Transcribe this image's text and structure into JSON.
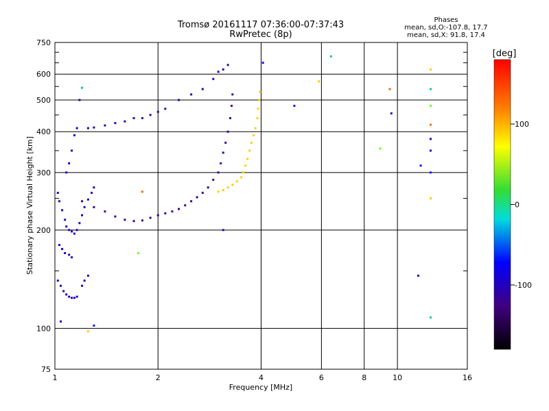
{
  "header": {
    "title_line1": "Tromsø 20161117 07:36:00-07:37:43",
    "title_line2": "RwPretec (8p)",
    "phases_title": "Phases",
    "phases_line1": "mean, sd,O:-107.8, 17.7",
    "phases_line2": "mean, sd,X:  91.8, 17.4"
  },
  "colorbar": {
    "unit": "[deg]",
    "tick_labels": [
      "100",
      "0",
      "-100"
    ],
    "tick_values": [
      100,
      0,
      -100
    ],
    "range": [
      -180,
      180
    ]
  },
  "chart_data": {
    "type": "scatter",
    "xlabel": "Frequency [MHz]",
    "ylabel": "Stationary phase Virtual Height [km]",
    "xscale": "log",
    "yscale": "log",
    "xlim": [
      1,
      16
    ],
    "ylim": [
      75,
      750
    ],
    "xticks": [
      1,
      2,
      4,
      6,
      8,
      10,
      16
    ],
    "xtick_labels": [
      "1",
      "2",
      "4",
      "6",
      "8",
      "10",
      "16"
    ],
    "yticks": [
      75,
      100,
      200,
      300,
      400,
      500,
      600,
      750
    ],
    "ytick_labels": [
      "75",
      "100",
      "200",
      "300",
      "400",
      "500",
      "600",
      "750"
    ],
    "x_gridlines": [
      1,
      2,
      4,
      6,
      8,
      10,
      16
    ],
    "y_gridlines": [
      100,
      200,
      300,
      400,
      500,
      600,
      750
    ],
    "grid": true,
    "color_encoding": "phase in degrees",
    "series": [
      {
        "trace": "O-mode low-frequency E/F1 region",
        "phase_deg": -100,
        "points": [
          [
            1.02,
            260
          ],
          [
            1.03,
            245
          ],
          [
            1.05,
            230
          ],
          [
            1.07,
            215
          ],
          [
            1.08,
            205
          ],
          [
            1.1,
            200
          ],
          [
            1.12,
            198
          ],
          [
            1.14,
            195
          ],
          [
            1.16,
            200
          ],
          [
            1.18,
            210
          ],
          [
            1.2,
            222
          ],
          [
            1.22,
            235
          ],
          [
            1.25,
            248
          ],
          [
            1.28,
            260
          ],
          [
            1.3,
            270
          ],
          [
            1.02,
            140
          ],
          [
            1.04,
            135
          ],
          [
            1.06,
            130
          ],
          [
            1.08,
            127
          ],
          [
            1.1,
            125
          ],
          [
            1.12,
            124
          ],
          [
            1.14,
            124
          ],
          [
            1.16,
            125
          ],
          [
            1.2,
            135
          ],
          [
            1.22,
            140
          ],
          [
            1.25,
            145
          ],
          [
            1.03,
            180
          ],
          [
            1.05,
            175
          ],
          [
            1.07,
            170
          ],
          [
            1.1,
            168
          ],
          [
            1.12,
            165
          ],
          [
            1.08,
            300
          ],
          [
            1.1,
            320
          ],
          [
            1.12,
            350
          ],
          [
            1.14,
            390
          ],
          [
            1.16,
            410
          ],
          [
            1.18,
            500
          ]
        ]
      },
      {
        "trace": "O-mode F-layer main trace",
        "phase_deg": -120,
        "points": [
          [
            1.2,
            245
          ],
          [
            1.3,
            235
          ],
          [
            1.4,
            228
          ],
          [
            1.5,
            220
          ],
          [
            1.6,
            215
          ],
          [
            1.7,
            213
          ],
          [
            1.8,
            214
          ],
          [
            1.9,
            218
          ],
          [
            2.0,
            222
          ],
          [
            2.1,
            225
          ],
          [
            2.2,
            228
          ],
          [
            2.3,
            232
          ],
          [
            2.4,
            238
          ],
          [
            2.5,
            245
          ],
          [
            2.6,
            252
          ],
          [
            2.7,
            260
          ],
          [
            2.8,
            270
          ],
          [
            2.9,
            285
          ],
          [
            3.0,
            300
          ],
          [
            3.05,
            320
          ],
          [
            3.1,
            345
          ],
          [
            3.15,
            370
          ],
          [
            3.2,
            400
          ],
          [
            3.25,
            440
          ],
          [
            3.28,
            480
          ],
          [
            3.3,
            520
          ]
        ]
      },
      {
        "trace": "O-mode sporadic/upper returns",
        "phase_deg": -110,
        "points": [
          [
            1.25,
            410
          ],
          [
            1.3,
            412
          ],
          [
            1.4,
            418
          ],
          [
            1.5,
            425
          ],
          [
            1.6,
            430
          ],
          [
            1.7,
            440
          ],
          [
            1.8,
            440
          ],
          [
            1.9,
            450
          ],
          [
            2.0,
            460
          ],
          [
            2.1,
            470
          ],
          [
            2.3,
            500
          ],
          [
            2.5,
            520
          ],
          [
            2.7,
            540
          ],
          [
            2.9,
            580
          ],
          [
            3.0,
            610
          ],
          [
            3.1,
            620
          ],
          [
            3.2,
            640
          ]
        ]
      },
      {
        "trace": "X-mode F-layer trace",
        "phase_deg": 90,
        "points": [
          [
            3.0,
            262
          ],
          [
            3.1,
            265
          ],
          [
            3.2,
            270
          ],
          [
            3.3,
            275
          ],
          [
            3.4,
            282
          ],
          [
            3.5,
            290
          ],
          [
            3.55,
            300
          ],
          [
            3.6,
            315
          ],
          [
            3.65,
            330
          ],
          [
            3.7,
            350
          ],
          [
            3.75,
            370
          ],
          [
            3.8,
            390
          ],
          [
            3.85,
            410
          ],
          [
            3.9,
            440
          ],
          [
            3.92,
            470
          ],
          [
            3.95,
            500
          ],
          [
            3.97,
            530
          ]
        ]
      },
      {
        "trace": "Scattered / noise points",
        "phase_deg": null,
        "points": [
          [
            1.04,
            105
          ],
          [
            1.3,
            102
          ],
          [
            1.25,
            98
          ],
          [
            1.2,
            545
          ],
          [
            1.75,
            170
          ],
          [
            1.8,
            262
          ],
          [
            3.1,
            200
          ],
          [
            4.05,
            650
          ],
          [
            5.0,
            480
          ],
          [
            5.9,
            570
          ],
          [
            6.4,
            680
          ],
          [
            8.9,
            355
          ],
          [
            9.5,
            540
          ],
          [
            9.6,
            455
          ],
          [
            11.5,
            145
          ],
          [
            11.7,
            315
          ],
          [
            12.5,
            620
          ],
          [
            12.5,
            540
          ],
          [
            12.5,
            480
          ],
          [
            12.5,
            420
          ],
          [
            12.5,
            380
          ],
          [
            12.5,
            350
          ],
          [
            12.5,
            300
          ],
          [
            12.5,
            250
          ],
          [
            12.5,
            108
          ]
        ]
      }
    ]
  }
}
